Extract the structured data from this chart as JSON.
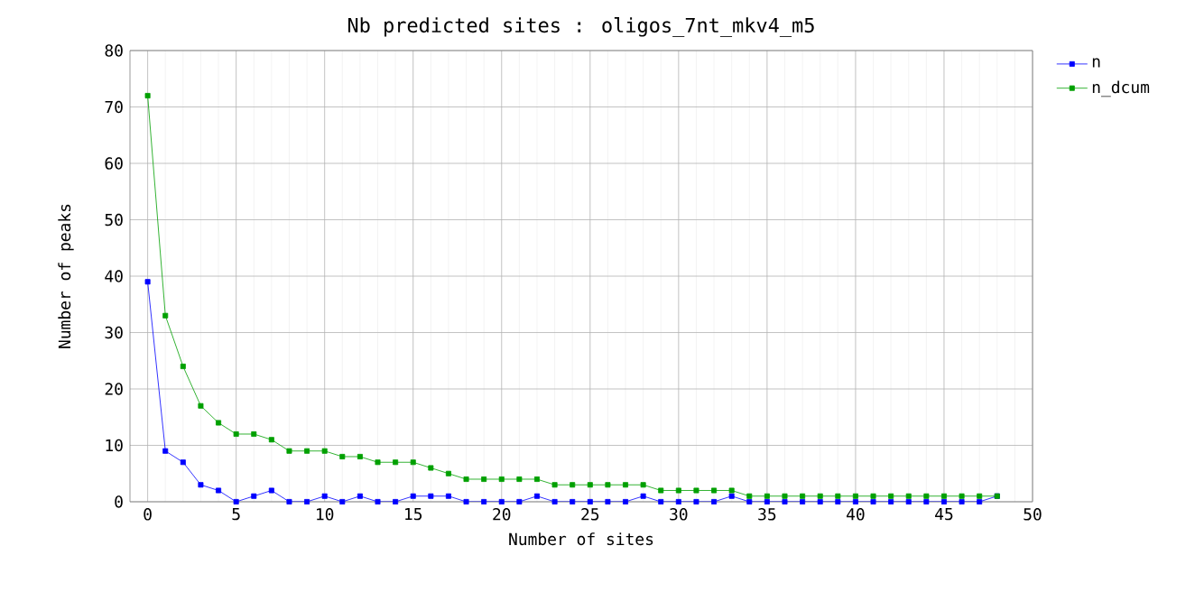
{
  "chart_data": {
    "type": "line",
    "title": "Nb predicted sites : oligos_7nt_mkv4_m5",
    "xlabel": "Number of sites",
    "ylabel": "Number of peaks",
    "x": [
      0,
      1,
      2,
      3,
      4,
      5,
      6,
      7,
      8,
      9,
      10,
      11,
      12,
      13,
      14,
      15,
      16,
      17,
      18,
      19,
      20,
      21,
      22,
      23,
      24,
      25,
      26,
      27,
      28,
      29,
      30,
      31,
      32,
      33,
      34,
      35,
      36,
      37,
      38,
      39,
      40,
      41,
      42,
      43,
      44,
      45,
      46,
      47,
      48
    ],
    "series": [
      {
        "name": "n",
        "color": "#0000ff",
        "values": [
          39,
          9,
          7,
          3,
          2,
          0,
          1,
          2,
          0,
          0,
          1,
          0,
          1,
          0,
          0,
          1,
          1,
          1,
          0,
          0,
          0,
          0,
          1,
          0,
          0,
          0,
          0,
          0,
          1,
          0,
          0,
          0,
          0,
          1,
          0,
          0,
          0,
          0,
          0,
          0,
          0,
          0,
          0,
          0,
          0,
          0,
          0,
          0,
          1
        ]
      },
      {
        "name": "n_dcum",
        "color": "#00a000",
        "values": [
          72,
          33,
          24,
          17,
          14,
          12,
          12,
          11,
          9,
          9,
          9,
          8,
          8,
          7,
          7,
          7,
          6,
          5,
          4,
          4,
          4,
          4,
          4,
          3,
          3,
          3,
          3,
          3,
          3,
          2,
          2,
          2,
          2,
          2,
          1,
          1,
          1,
          1,
          1,
          1,
          1,
          1,
          1,
          1,
          1,
          1,
          1,
          1,
          1
        ]
      }
    ],
    "xlim": [
      -1,
      50
    ],
    "ylim": [
      0,
      80
    ],
    "xticks": [
      0,
      5,
      10,
      15,
      20,
      25,
      30,
      35,
      40,
      45,
      50
    ],
    "yticks": [
      0,
      10,
      20,
      30,
      40,
      50,
      60,
      70,
      80
    ],
    "grid": true,
    "legend": "top right",
    "marker": "square",
    "line_style": "solid"
  }
}
